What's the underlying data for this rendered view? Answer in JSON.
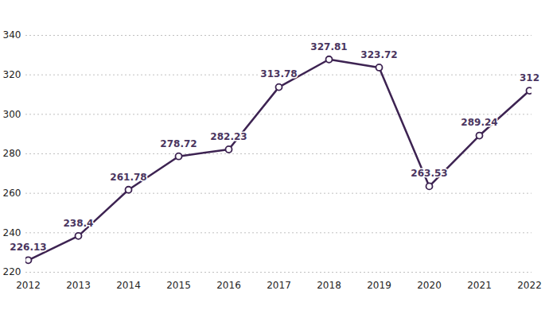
{
  "chart_data": {
    "type": "line",
    "categories": [
      "2012",
      "2013",
      "2014",
      "2015",
      "2016",
      "2017",
      "2018",
      "2019",
      "2020",
      "2021",
      "2022"
    ],
    "values": [
      226.13,
      238.4,
      261.78,
      278.72,
      282.23,
      313.78,
      327.81,
      323.72,
      263.53,
      289.24,
      312
    ],
    "color": "#3d2352",
    "marker": "circle",
    "ylim": [
      220,
      340
    ],
    "yticks": [
      220,
      240,
      260,
      280,
      300,
      320,
      340
    ],
    "grid": true,
    "data_labels": true
  }
}
